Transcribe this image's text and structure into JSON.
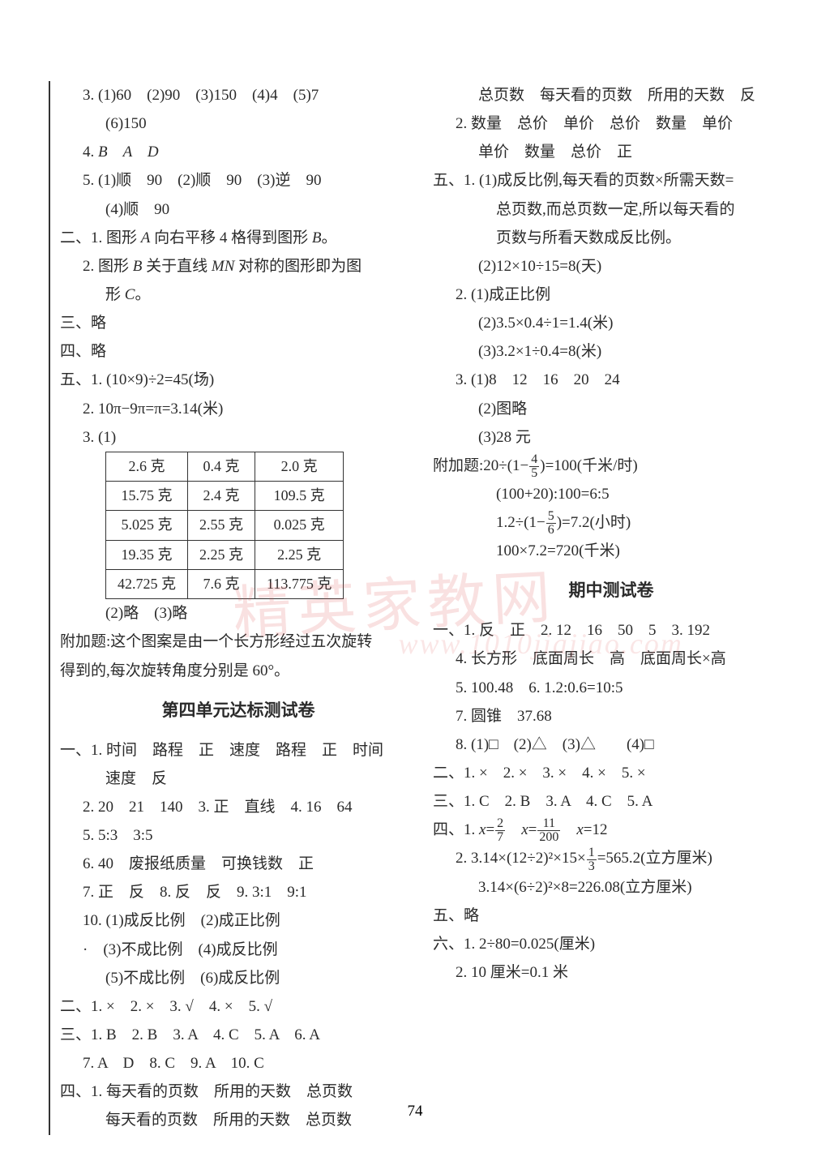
{
  "page_number": "74",
  "watermark_main": "精英家教网",
  "watermark_url": "www.1010jiajiao.com",
  "left_col": {
    "l1": "3. (1)60　(2)90　(3)150　(4)4　(5)7",
    "l2": "(6)150",
    "l3_prefix": "4. ",
    "l3_i": "B　A　D",
    "l4": "5. (1)顺　90　(2)顺　90　(3)逆　90",
    "l5": "(4)顺　90",
    "l6_a": "二、1. 图形 ",
    "l6_i1": "A",
    "l6_b": " 向右平移 4 格得到图形 ",
    "l6_i2": "B",
    "l6_c": "。",
    "l7_a": "2. 图形 ",
    "l7_i1": "B",
    "l7_b": " 关于直线 ",
    "l7_i2": "MN",
    "l7_c": " 对称的图形即为图",
    "l8_a": "形 ",
    "l8_i": "C",
    "l8_b": "。",
    "l9": "三、略",
    "l10": "四、略",
    "l11": "五、1. (10×9)÷2=45(场)",
    "l12": "2. 10π−9π=π=3.14(米)",
    "l13": "3. (1)",
    "table": {
      "rows": [
        [
          "2.6 克",
          "0.4 克",
          "2.0 克"
        ],
        [
          "15.75 克",
          "2.4 克",
          "109.5 克"
        ],
        [
          "5.025 克",
          "2.55 克",
          "0.025 克"
        ],
        [
          "19.35 克",
          "2.25 克",
          "2.25 克"
        ],
        [
          "42.725 克",
          "7.6 克",
          "113.775 克"
        ]
      ]
    },
    "l14": "(2)略　(3)略",
    "l15": "附加题:这个图案是由一个长方形经过五次旋转",
    "l16": "得到的,每次旋转角度分别是 60°。",
    "title1": "第四单元达标测试卷",
    "l17": "一、1. 时间　路程　正　速度　路程　正　时间",
    "l18": "速度　反",
    "l19": "2. 20　21　140　3. 正　直线　4. 16　64",
    "l20": "5. 5:3　3:5",
    "l21": "6. 40　废报纸质量　可换钱数　正",
    "l22": "7. 正　反　8. 反　反　9. 3:1　9:1",
    "l23": "10. (1)成反比例　(2)成正比例",
    "l24": "·　(3)不成比例　(4)成反比例",
    "l25": "(5)不成比例　(6)成反比例",
    "l26": "二、1. ×　2. ×　3. √　4. ×　5. √",
    "l27": "三、1. B　2. B　3. A　4. C　5. A　6. A",
    "l28": "7. A　D　8. C　9. A　10. C",
    "l29": "四、1. 每天看的页数　所用的天数　总页数",
    "l30": "每天看的页数　所用的天数　总页数"
  },
  "right_col": {
    "r1": "总页数　每天看的页数　所用的天数　反",
    "r2": "2. 数量　总价　单价　总价　数量　单价",
    "r3": "单价　数量　总价　正",
    "r4": "五、1. (1)成反比例,每天看的页数×所需天数=",
    "r5": "总页数,而总页数一定,所以每天看的",
    "r6": "页数与所看天数成反比例。",
    "r7": "(2)12×10÷15=8(天)",
    "r8": "2. (1)成正比例",
    "r9": "(2)3.5×0.4÷1=1.4(米)",
    "r10": "(3)3.2×1÷0.4=8(米)",
    "r11": "3. (1)8　12　16　20　24",
    "r12": "(2)图略",
    "r13": "(3)28 元",
    "r14_a": "附加题:20÷(1−",
    "r14_num": "4",
    "r14_den": "5",
    "r14_b": ")=100(千米/时)",
    "r15": "(100+20):100=6:5",
    "r16_a": "1.2÷(1−",
    "r16_num": "5",
    "r16_den": "6",
    "r16_b": ")=7.2(小时)",
    "r17": "100×7.2=720(千米)",
    "title2": "期中测试卷",
    "r18": "一、1. 反　正　2. 12　16　50　5　3. 192",
    "r19": "4. 长方形　底面周长　高　底面周长×高",
    "r20": "5. 100.48　6. 1.2:0.6=10:5",
    "r21": "7. 圆锥　37.68",
    "r22": "8. (1)□　(2)△　(3)△　　(4)□",
    "r23": "二、1. ×　2. ×　3. ×　4. ×　5. ×",
    "r24": "三、1. C　2. B　3. A　4. C　5. A",
    "r25_a": "四、1. ",
    "r25_i": "x",
    "r25_b": "=",
    "r25_n1": "2",
    "r25_d1": "7",
    "r25_c": "　",
    "r25_i2": "x",
    "r25_d": "=",
    "r25_n2": "11",
    "r25_d2": "200",
    "r25_e": "　",
    "r25_i3": "x",
    "r25_f": "=12",
    "r26_a": "2. 3.14×(12÷2)²×15×",
    "r26_num": "1",
    "r26_den": "3",
    "r26_b": "=565.2(立方厘米)",
    "r27": "3.14×(6÷2)²×8=226.08(立方厘米)",
    "r28": "五、略",
    "r29": "六、1. 2÷80=0.025(厘米)",
    "r30": "2. 10 厘米=0.1 米"
  }
}
